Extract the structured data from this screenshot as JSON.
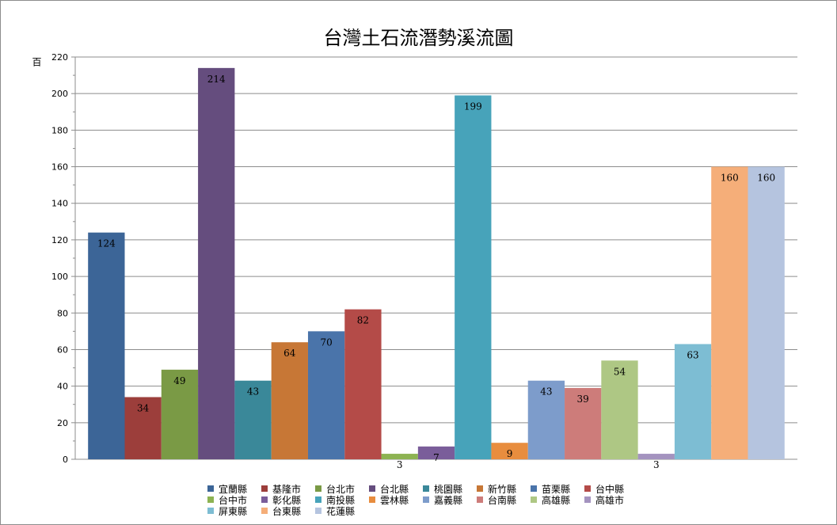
{
  "chart_data": {
    "type": "bar",
    "title": "台灣土石流潛勢溪流圖",
    "ylabel": "百",
    "xlabel": "",
    "ylim": [
      0,
      220
    ],
    "yticks": [
      0,
      20,
      40,
      60,
      80,
      100,
      120,
      140,
      160,
      180,
      200,
      220
    ],
    "grid": true,
    "legend_position": "bottom",
    "series": [
      {
        "name": "宜蘭縣",
        "value": 124,
        "color": "#3C6597"
      },
      {
        "name": "基隆市",
        "value": 34,
        "color": "#9C3E3B"
      },
      {
        "name": "台北市",
        "value": 49,
        "color": "#7A9A45"
      },
      {
        "name": "台北縣",
        "value": 214,
        "color": "#654D7E"
      },
      {
        "name": "桃園縣",
        "value": 43,
        "color": "#3A8899"
      },
      {
        "name": "新竹縣",
        "value": 64,
        "color": "#C77736"
      },
      {
        "name": "苗栗縣",
        "value": 70,
        "color": "#4A74AA"
      },
      {
        "name": "台中縣",
        "value": 82,
        "color": "#B44B48"
      },
      {
        "name": "台中市",
        "value": 3,
        "color": "#8DB352"
      },
      {
        "name": "彰化縣",
        "value": 7,
        "color": "#7A5D9A"
      },
      {
        "name": "南投縣",
        "value": 199,
        "color": "#47A3BA"
      },
      {
        "name": "雲林縣",
        "value": 9,
        "color": "#E88D3E"
      },
      {
        "name": "嘉義縣",
        "value": 43,
        "color": "#7D9CCB"
      },
      {
        "name": "台南縣",
        "value": 39,
        "color": "#CD7C7A"
      },
      {
        "name": "高雄縣",
        "value": 54,
        "color": "#AEC784"
      },
      {
        "name": "高雄市",
        "value": 3,
        "color": "#A493BF"
      },
      {
        "name": "屏東縣",
        "value": 63,
        "color": "#7DBDD3"
      },
      {
        "name": "台東縣",
        "value": 160,
        "color": "#F5AE79"
      },
      {
        "name": "花蓮縣",
        "value": 160,
        "color": "#B5C4DF"
      }
    ]
  }
}
